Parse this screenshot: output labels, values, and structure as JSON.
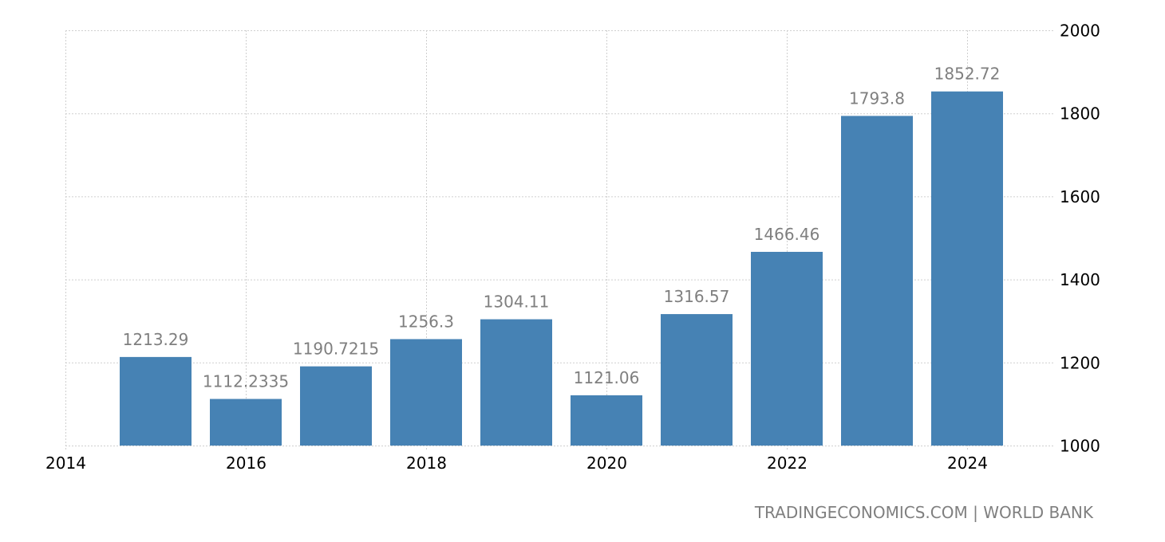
{
  "chart_data": {
    "type": "bar",
    "title": "",
    "xlabel": "",
    "ylabel": "",
    "x": [
      2015,
      2016,
      2017,
      2018,
      2019,
      2020,
      2021,
      2022,
      2023,
      2024
    ],
    "values": [
      1213.29,
      1112.2335,
      1190.7215,
      1256.3,
      1304.11,
      1121.06,
      1316.57,
      1466.46,
      1793.8,
      1852.72
    ],
    "value_labels": [
      "1213.29",
      "1112.2335",
      "1190.7215",
      "1256.3",
      "1304.11",
      "1121.06",
      "1316.57",
      "1466.46",
      "1793.8",
      "1852.72"
    ],
    "x_ticks": [
      "2014",
      "2016",
      "2018",
      "2020",
      "2022",
      "2024"
    ],
    "y_ticks": [
      "1000",
      "1200",
      "1400",
      "1600",
      "1800",
      "2000"
    ],
    "ylim": [
      1000,
      2000
    ],
    "xlim": [
      2014,
      2024.95
    ],
    "grid": true,
    "bar_color": "#4682b4",
    "y_axis_position": "right"
  },
  "source": "TRADINGECONOMICS.COM | WORLD BANK"
}
